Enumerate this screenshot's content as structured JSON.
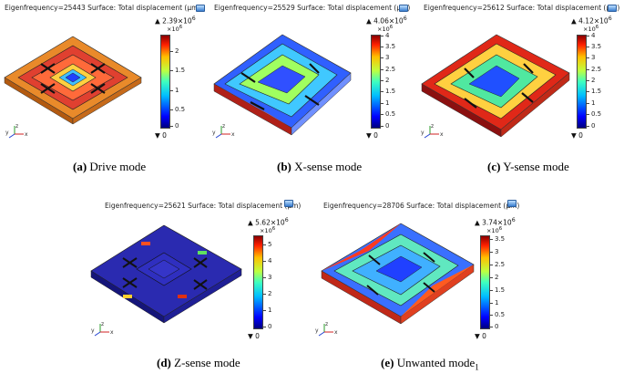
{
  "panels": [
    {
      "header": "Eigenfrequency=25443 Surface: Total displacement (µm)",
      "max_label": "▲ 2.39×10",
      "max_exp": "6",
      "unit": "×10",
      "unit_exp": "6",
      "ticks": [
        "2",
        "1.5",
        "1",
        "0.5",
        "0"
      ],
      "min_label": "▼ 0",
      "caption_letter": "(a)",
      "caption_text": " Drive mode",
      "caption_sub": ""
    },
    {
      "header": "Eigenfrequency=25529 Surface: Total displacement (µm)",
      "max_label": "▲ 4.06×10",
      "max_exp": "6",
      "unit": "×10",
      "unit_exp": "6",
      "ticks": [
        "4",
        "3.5",
        "3",
        "2.5",
        "2",
        "1.5",
        "1",
        "0.5",
        "0"
      ],
      "min_label": "▼ 0",
      "caption_letter": "(b)",
      "caption_text": " X-sense mode",
      "caption_sub": ""
    },
    {
      "header": "Eigenfrequency=25612 Surface: Total displacement (µm)",
      "max_label": "▲ 4.12×10",
      "max_exp": "6",
      "unit": "×10",
      "unit_exp": "6",
      "ticks": [
        "4",
        "3.5",
        "3",
        "2.5",
        "2",
        "1.5",
        "1",
        "0.5",
        "0"
      ],
      "min_label": "▼ 0",
      "caption_letter": "(c)",
      "caption_text": " Y-sense mode",
      "caption_sub": ""
    },
    {
      "header": "Eigenfrequency=25621 Surface: Total displacement (µm)",
      "max_label": "▲ 5.62×10",
      "max_exp": "6",
      "unit": "×10",
      "unit_exp": "6",
      "ticks": [
        "5",
        "4",
        "3",
        "2",
        "1",
        "0"
      ],
      "min_label": "▼ 0",
      "caption_letter": "(d)",
      "caption_text": " Z-sense mode",
      "caption_sub": ""
    },
    {
      "header": "Eigenfrequency=28706 Surface: Total displacement (µm)",
      "max_label": "▲ 3.74×10",
      "max_exp": "6",
      "unit": "×10",
      "unit_exp": "6",
      "ticks": [
        "3.5",
        "3",
        "2.5",
        "2",
        "1.5",
        "1",
        "0.5",
        "0"
      ],
      "min_label": "▼ 0",
      "caption_letter": "(e)",
      "caption_text": " Unwanted mode",
      "caption_sub": "1"
    }
  ],
  "axes": {
    "x": "x",
    "y": "y",
    "z": "z"
  },
  "colors": {
    "scale_top": "#8b0000",
    "scale_bottom": "#00007f",
    "structure_outline": "#111111"
  }
}
